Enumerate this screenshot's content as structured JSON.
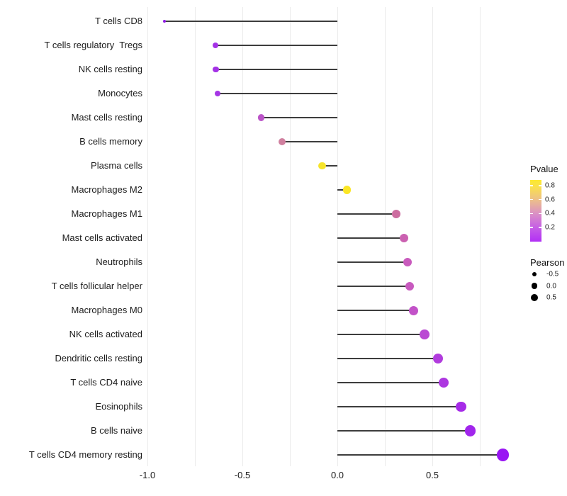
{
  "chart_data": {
    "type": "scatter",
    "style": "lollipop-horizontal",
    "title": "",
    "xlabel": "",
    "ylabel": "",
    "xlim": [
      -1.05,
      0.95
    ],
    "x_ticks": [
      "-1.0",
      "-0.5",
      "0.0",
      "0.5"
    ],
    "x_tick_values": [
      -1.0,
      -0.5,
      0.0,
      0.5
    ],
    "grid_values": [
      -1.0,
      -0.75,
      -0.5,
      -0.25,
      0.0,
      0.25,
      0.5,
      0.75
    ],
    "grid_on": true,
    "baseline_value": 0.0,
    "categories": [
      "T cells CD8",
      "T cells regulatory  Tregs",
      "NK cells resting",
      "Monocytes",
      "Mast cells resting",
      "B cells memory",
      "Plasma cells",
      "Macrophages M2",
      "Macrophages M1",
      "Mast cells activated",
      "Neutrophils",
      "T cells follicular helper",
      "Macrophages M0",
      "NK cells activated",
      "Dendritic cells resting",
      "T cells CD4 naive",
      "Eosinophils",
      "B cells naive",
      "T cells CD4 memory resting"
    ],
    "series": [
      {
        "name": "Pearson correlation",
        "values": [
          -0.91,
          -0.64,
          -0.64,
          -0.63,
          -0.4,
          -0.29,
          -0.08,
          0.05,
          0.31,
          0.35,
          0.37,
          0.38,
          0.4,
          0.46,
          0.53,
          0.56,
          0.65,
          0.7,
          0.87
        ]
      }
    ],
    "point_colors": [
      "#8f1be5",
      "#a432e6",
      "#a432e6",
      "#a535e5",
      "#bb54c8",
      "#d0809f",
      "#f6e42c",
      "#fbe625",
      "#cd6da0",
      "#cb61b1",
      "#c95bbd",
      "#c85abf",
      "#c252c8",
      "#ba48d3",
      "#b13cdd",
      "#ad37e0",
      "#a62be8",
      "#a126ec",
      "#9915f3"
    ],
    "point_radii": [
      2.0,
      4.0,
      4.2,
      4.2,
      4.6,
      5.0,
      5.4,
      5.6,
      6.0,
      6.2,
      6.3,
      6.3,
      6.5,
      6.8,
      7.0,
      7.1,
      7.4,
      7.6,
      8.6
    ],
    "stem_color": "#3d3d3d",
    "grid_color": "#ebebeb",
    "legend_pvalue": {
      "title": "Pvalue",
      "position": "right",
      "ticks": [
        "0.8",
        "0.6",
        "0.4",
        "0.2"
      ],
      "tick_values": [
        0.8,
        0.6,
        0.4,
        0.2
      ],
      "range": [
        0.0,
        0.88
      ],
      "gradient_stops": [
        {
          "pct": 0,
          "color": "#b230f5"
        },
        {
          "pct": 22,
          "color": "#c55ce6"
        },
        {
          "pct": 45,
          "color": "#da8fc6"
        },
        {
          "pct": 68,
          "color": "#edc089"
        },
        {
          "pct": 88,
          "color": "#f9df4e"
        },
        {
          "pct": 100,
          "color": "#fcea30"
        }
      ]
    },
    "legend_pearson": {
      "title": "Pearson",
      "position": "right",
      "entries": [
        {
          "label": "-0.5",
          "radius": 3.0
        },
        {
          "label": "0.0",
          "radius": 4.2
        },
        {
          "label": "0.5",
          "radius": 5.2
        }
      ]
    }
  }
}
